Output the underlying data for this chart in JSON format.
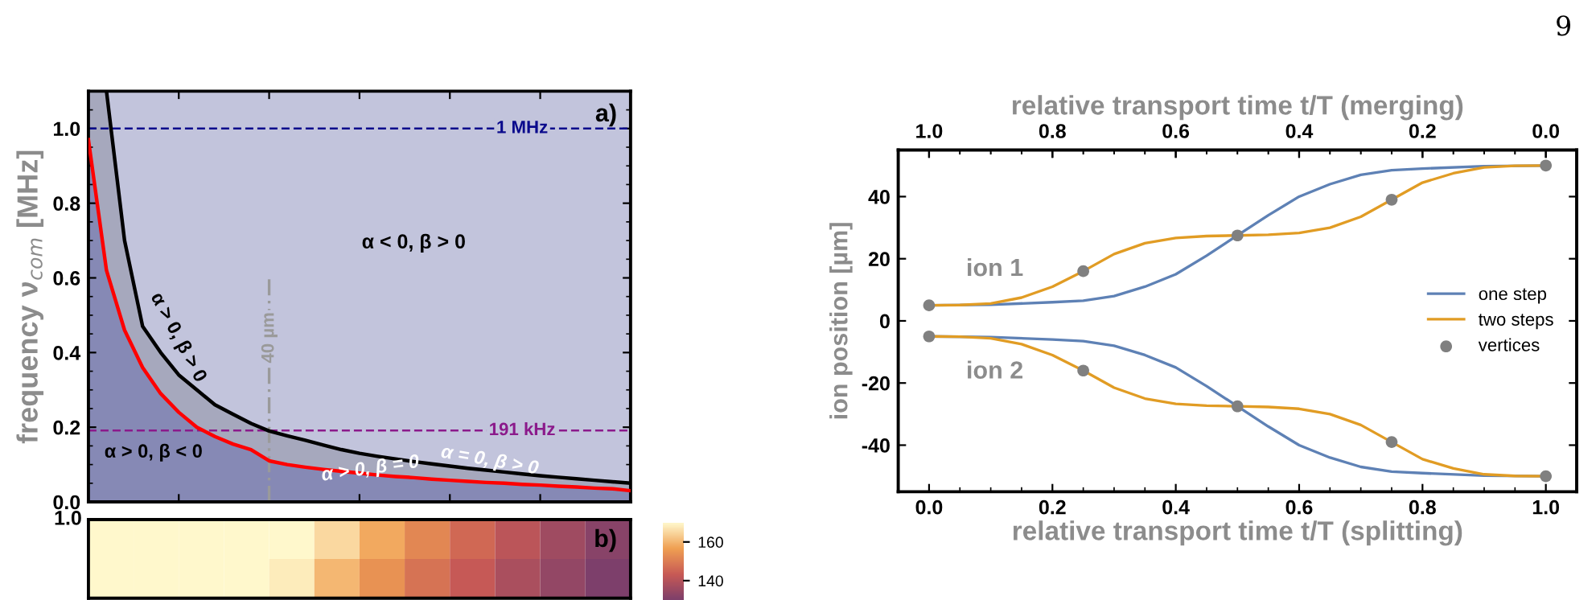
{
  "chart_data": [
    {
      "type": "line",
      "ylabel": "frequency ν$_{com}$ [MHz]",
      "categories": [
        null,
        null,
        null,
        null,
        null,
        null,
        null,
        null,
        null,
        null,
        null,
        null,
        null,
        null,
        null,
        null,
        null,
        null,
        null,
        null,
        null,
        null,
        null,
        null,
        null,
        null,
        null,
        null,
        null,
        null,
        null
      ],
      "series": [
        {
          "type": "area",
          "color": "#8689b5",
          "values": [
            0.97,
            0.62,
            0.46,
            0.36,
            0.29,
            0.24,
            0.2,
            0.175,
            0.155,
            0.14,
            0.11,
            0.1,
            0.093,
            0.087,
            0.082,
            0.077,
            0.072,
            0.068,
            0.065,
            0.061,
            0.058,
            0.055,
            0.052,
            0.05,
            0.047,
            0.045,
            0.042,
            0.04,
            0.037,
            0.035,
            0.03
          ]
        },
        {
          "type": "line",
          "color": "#000000",
          "values": [
            null,
            1.1,
            0.7,
            0.47,
            0.4,
            0.34,
            0.3,
            0.26,
            0.235,
            0.21,
            0.19,
            0.177,
            0.165,
            0.152,
            0.14,
            0.13,
            0.122,
            0.115,
            0.108,
            0.102,
            0.096,
            0.09,
            0.085,
            0.08,
            0.075,
            0.07,
            0.066,
            0.062,
            0.058,
            0.054,
            0.05
          ],
          "lower": [
            0.97,
            0.62,
            0.46,
            0.36,
            0.29,
            0.24,
            0.2,
            0.175,
            0.155,
            0.14,
            0.11,
            0.1,
            0.093,
            0.087,
            0.082,
            0.077,
            0.072,
            0.068,
            0.065,
            0.061,
            0.058,
            0.055,
            0.052,
            0.05,
            0.047,
            0.045,
            0.042,
            0.04,
            0.037,
            0.035,
            0.03
          ],
          "upper": [
            1.1,
            1.1,
            0.7,
            0.47,
            0.4,
            0.34,
            0.3,
            0.26,
            0.235,
            0.21,
            0.19,
            0.177,
            0.165,
            0.152,
            0.14,
            0.13,
            0.122,
            0.115,
            0.108,
            0.102,
            0.096,
            0.09,
            0.085,
            0.08,
            0.075,
            0.07,
            0.066,
            0.062,
            0.058,
            0.054,
            0.05
          ]
        },
        {
          "type": "line",
          "color": "#ff0000",
          "values": [
            0.97,
            0.62,
            0.46,
            0.36,
            0.29,
            0.24,
            0.2,
            0.175,
            0.155,
            0.14,
            0.11,
            0.1,
            0.093,
            0.087,
            0.082,
            0.077,
            0.072,
            0.068,
            0.065,
            0.061,
            0.058,
            0.055,
            0.052,
            0.05,
            0.047,
            0.045,
            0.042,
            0.04,
            0.037,
            0.035,
            0.03
          ]
        }
      ],
      "ylim": [
        0,
        1.1
      ],
      "yticks": [
        {
          "value": 0,
          "label": "0.0"
        },
        {
          "value": 0.2,
          "label": "0.2"
        },
        {
          "value": 0.4,
          "label": "0.4"
        },
        {
          "value": 0.6,
          "label": "0.6"
        },
        {
          "value": 0.8,
          "label": "0.8"
        },
        {
          "value": 1,
          "label": "1.0"
        }
      ],
      "tick_labels": "y",
      "bands": [
        {
          "axis": "y",
          "from": 0,
          "to": 1.1,
          "color": "#c2c4dc"
        }
      ],
      "ref_lines": [
        {
          "axis": "y",
          "value": 1,
          "label": "1 MHz",
          "color": "#0a0a8c",
          "line_style": "dashed"
        },
        {
          "axis": "y",
          "value": 0.191,
          "label": "191 kHz",
          "color": "#8b1a8b",
          "line_style": "dashed"
        }
      ],
      "annotations": [
        "a)",
        "α < 0, β > 0",
        "α > 0, β > 0",
        "α > 0, β < 0",
        "α > 0, β = 0",
        "α = 0, β > 0",
        "40 µm"
      ]
    },
    {
      "type": "heatmap",
      "categories": [
        null,
        null,
        null,
        null,
        null,
        null,
        null,
        null,
        null,
        null,
        null,
        null
      ],
      "y_categories": [
        null,
        null
      ],
      "cells": [
        [
          170,
          170,
          170,
          170,
          170,
          165,
          158,
          152,
          146,
          141,
          136,
          132
        ],
        [
          170,
          170,
          170,
          170,
          168,
          160,
          154,
          148,
          143,
          138,
          134,
          130
        ]
      ],
      "colors": [
        "#7d3f6b",
        "#c85a55",
        "#f0a052",
        "#fff8cc"
      ],
      "clim": [
        130,
        170
      ],
      "cticks": [
        140,
        160
      ],
      "annotations": [
        "b)",
        "1.0"
      ]
    },
    {
      "type": "line",
      "xlabel": "relative transport time t/T (splitting)",
      "x2label": "relative transport time t/T (merging)",
      "ylabel": "ion position [µm]",
      "series": [
        {
          "name": "one step",
          "color": "#5e81b5",
          "x": [
            0,
            0.1,
            0.2,
            0.25,
            0.3,
            0.35,
            0.4,
            0.45,
            0.5,
            0.55,
            0.6,
            0.65,
            0.7,
            0.75,
            0.8,
            0.9,
            1
          ],
          "values": [
            5,
            5.2,
            6,
            6.5,
            8,
            11,
            15,
            21,
            27.5,
            34,
            40,
            44,
            47,
            48.5,
            49,
            49.8,
            50
          ]
        },
        {
          "name": "two steps",
          "color": "#e19c24",
          "x": [
            0,
            0.05,
            0.1,
            0.15,
            0.2,
            0.25,
            0.3,
            0.35,
            0.4,
            0.45,
            0.5,
            0.55,
            0.6,
            0.65,
            0.7,
            0.75,
            0.8,
            0.85,
            0.9,
            0.95,
            1
          ],
          "values": [
            5,
            5.1,
            5.6,
            7.5,
            11,
            16,
            21.5,
            25,
            26.7,
            27.3,
            27.5,
            27.7,
            28.3,
            30,
            33.5,
            39,
            44.5,
            47.5,
            49.4,
            49.9,
            50
          ]
        },
        {
          "color": "#5e81b5",
          "x": [
            0,
            0.1,
            0.2,
            0.25,
            0.3,
            0.35,
            0.4,
            0.45,
            0.5,
            0.55,
            0.6,
            0.65,
            0.7,
            0.75,
            0.8,
            0.9,
            1
          ],
          "values": [
            -5,
            -5.2,
            -6,
            -6.5,
            -8,
            -11,
            -15,
            -21,
            -27.5,
            -34,
            -40,
            -44,
            -47,
            -48.5,
            -49,
            -49.8,
            -50
          ]
        },
        {
          "color": "#e19c24",
          "x": [
            0,
            0.05,
            0.1,
            0.15,
            0.2,
            0.25,
            0.3,
            0.35,
            0.4,
            0.45,
            0.5,
            0.55,
            0.6,
            0.65,
            0.7,
            0.75,
            0.8,
            0.85,
            0.9,
            0.95,
            1
          ],
          "values": [
            -5,
            -5.1,
            -5.6,
            -7.5,
            -11,
            -16,
            -21.5,
            -25,
            -26.7,
            -27.3,
            -27.5,
            -27.7,
            -28.3,
            -30,
            -33.5,
            -39,
            -44.5,
            -47.5,
            -49.4,
            -49.9,
            -50
          ]
        },
        {
          "name": "vertices",
          "type": "scatter",
          "marker": "circle",
          "color": "#808080",
          "x": [
            0,
            0.25,
            0.5,
            0.75,
            1,
            0,
            0.25,
            0.5,
            0.75,
            1
          ],
          "values": [
            5,
            16,
            27.5,
            39,
            50,
            -5,
            -16,
            -27.5,
            -39,
            -50
          ]
        }
      ],
      "xlim": [
        -0.05,
        1.05
      ],
      "xticks": [
        {
          "value": 0,
          "label": "0.0"
        },
        {
          "value": 0.2,
          "label": "0.2"
        },
        {
          "value": 0.4,
          "label": "0.4"
        },
        {
          "value": 0.6,
          "label": "0.6"
        },
        {
          "value": 0.8,
          "label": "0.8"
        },
        {
          "value": 1,
          "label": "1.0"
        }
      ],
      "x2lim": [
        1.05,
        -0.05
      ],
      "x2ticks": [
        {
          "value": 1,
          "label": "1.0"
        },
        {
          "value": 0.8,
          "label": "0.8"
        },
        {
          "value": 0.6,
          "label": "0.6"
        },
        {
          "value": 0.4,
          "label": "0.4"
        },
        {
          "value": 0.2,
          "label": "0.2"
        },
        {
          "value": 0,
          "label": "0.0"
        }
      ],
      "ylim": [
        -55,
        55
      ],
      "yticks": [
        -40,
        -20,
        0,
        20,
        40
      ],
      "legend": "right",
      "grid": false,
      "annotations": [
        "ion 1",
        "ion 2",
        "9"
      ]
    }
  ]
}
